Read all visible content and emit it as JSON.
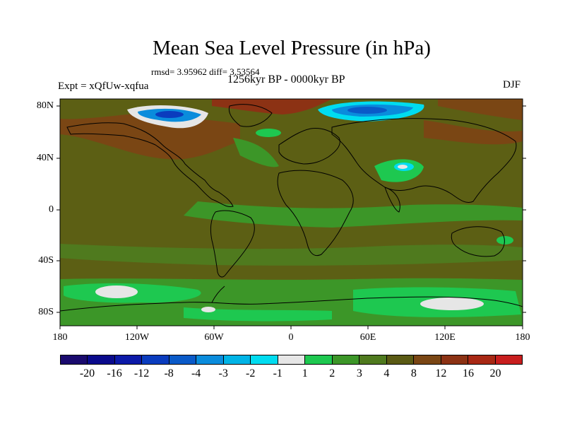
{
  "title": "Mean Sea Level Pressure (in hPa)",
  "stats": "rmsd= 3.95962 diff= 3.53564",
  "period": "1256kyr BP - 0000kyr BP",
  "experiment": "Expt = xQfUw-xqfua",
  "season": "DJF",
  "y_axis_labels": [
    "80N",
    "40N",
    "0",
    "40S",
    "80S"
  ],
  "x_axis_labels": [
    "180",
    "120W",
    "60W",
    "0",
    "60E",
    "120E",
    "180"
  ],
  "colorbar": {
    "labels": [
      "-20",
      "-16",
      "-12",
      "-8",
      "-4",
      "-3",
      "-2",
      "-1",
      "1",
      "2",
      "3",
      "4",
      "8",
      "12",
      "16",
      "20"
    ],
    "colors": [
      "#1a0a6e",
      "#0a0a8c",
      "#0c1aa8",
      "#0a3cbe",
      "#0a5ac8",
      "#0a8cdc",
      "#00b4e6",
      "#00dcf0",
      "#e6e6e6",
      "#1ec850",
      "#3c9628",
      "#4f7a1e",
      "#5a5a14",
      "#7a4614",
      "#8c3214",
      "#a82814",
      "#c81e1e"
    ]
  },
  "colors": {
    "land_fill": "#5c5f14",
    "neg1_fill": "#3c9628",
    "neg2_fill": "#1ec850",
    "pos12_fill": "#8c3214",
    "pos16_fill": "#a82814"
  }
}
